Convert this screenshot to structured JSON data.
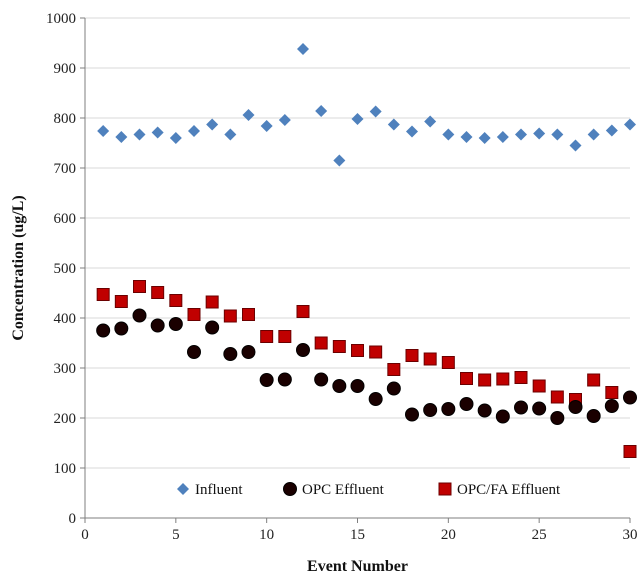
{
  "chart_data": {
    "type": "scatter",
    "title": "",
    "xlabel": "Event Number",
    "ylabel": "Concentration (ug/L)",
    "xlim": [
      0,
      30
    ],
    "ylim": [
      0,
      1000
    ],
    "xticks": [
      0,
      5,
      10,
      15,
      20,
      25,
      30
    ],
    "yticks": [
      0,
      100,
      200,
      300,
      400,
      500,
      600,
      700,
      800,
      900,
      1000
    ],
    "grid": "horizontal",
    "legend_position": "bottom-inside",
    "series": [
      {
        "name": "Influent",
        "marker": "diamond",
        "color": "#4f81bd",
        "x": [
          1,
          2,
          3,
          4,
          5,
          6,
          7,
          8,
          9,
          10,
          11,
          12,
          13,
          14,
          15,
          16,
          17,
          18,
          19,
          20,
          21,
          22,
          23,
          24,
          25,
          26,
          27,
          28,
          29,
          30
        ],
        "y": [
          774,
          762,
          767,
          771,
          760,
          774,
          787,
          767,
          806,
          784,
          796,
          938,
          814,
          715,
          798,
          813,
          787,
          773,
          793,
          767,
          762,
          760,
          762,
          767,
          769,
          767,
          745,
          767,
          775,
          787
        ]
      },
      {
        "name": "OPC Effluent",
        "marker": "circle",
        "color": "#1a0000",
        "x": [
          1,
          2,
          3,
          4,
          5,
          6,
          7,
          8,
          9,
          10,
          11,
          12,
          13,
          14,
          15,
          16,
          17,
          18,
          19,
          20,
          21,
          22,
          23,
          24,
          25,
          26,
          27,
          28,
          29,
          30
        ],
        "y": [
          375,
          379,
          405,
          385,
          388,
          332,
          381,
          328,
          332,
          276,
          277,
          336,
          277,
          264,
          264,
          238,
          259,
          207,
          216,
          218,
          228,
          215,
          203,
          221,
          219,
          200,
          222,
          204,
          224,
          241
        ]
      },
      {
        "name": "OPC/FA Effluent",
        "marker": "square",
        "color": "#c00000",
        "x": [
          1,
          2,
          3,
          4,
          5,
          6,
          7,
          8,
          9,
          10,
          11,
          12,
          13,
          14,
          15,
          16,
          17,
          18,
          19,
          20,
          21,
          22,
          23,
          24,
          25,
          26,
          27,
          28,
          29,
          30
        ],
        "y": [
          447,
          433,
          463,
          451,
          435,
          407,
          432,
          404,
          407,
          363,
          363,
          413,
          350,
          343,
          335,
          332,
          297,
          325,
          318,
          311,
          279,
          276,
          278,
          281,
          264,
          242,
          237,
          276,
          251,
          133
        ]
      }
    ]
  }
}
